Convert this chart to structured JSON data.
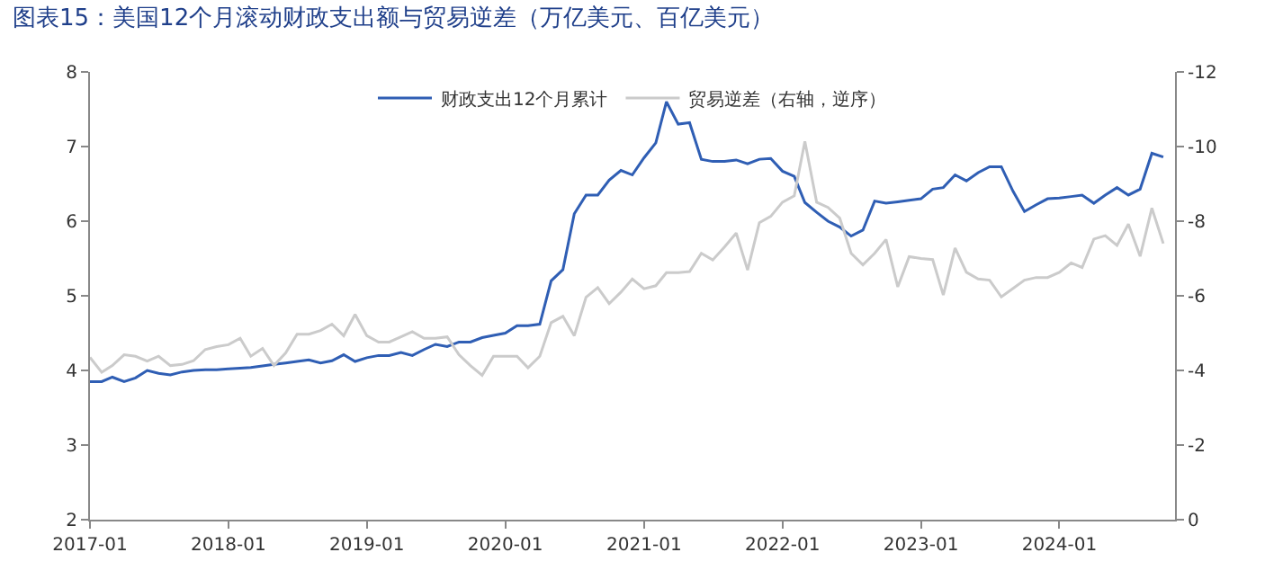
{
  "chart_data": {
    "type": "line",
    "title": "图表15：美国12个月滚动财政支出额与贸易逆差（万亿美元、百亿美元）",
    "x": [
      "2017-01",
      "2017-02",
      "2017-03",
      "2017-04",
      "2017-05",
      "2017-06",
      "2017-07",
      "2017-08",
      "2017-09",
      "2017-10",
      "2017-11",
      "2017-12",
      "2018-01",
      "2018-02",
      "2018-03",
      "2018-04",
      "2018-05",
      "2018-06",
      "2018-07",
      "2018-08",
      "2018-09",
      "2018-10",
      "2018-11",
      "2018-12",
      "2019-01",
      "2019-02",
      "2019-03",
      "2019-04",
      "2019-05",
      "2019-06",
      "2019-07",
      "2019-08",
      "2019-09",
      "2019-10",
      "2019-11",
      "2019-12",
      "2020-01",
      "2020-02",
      "2020-03",
      "2020-04",
      "2020-05",
      "2020-06",
      "2020-07",
      "2020-08",
      "2020-09",
      "2020-10",
      "2020-11",
      "2020-12",
      "2021-01",
      "2021-02",
      "2021-03",
      "2021-04",
      "2021-05",
      "2021-06",
      "2021-07",
      "2021-08",
      "2021-09",
      "2021-10",
      "2021-11",
      "2021-12",
      "2022-01",
      "2022-02",
      "2022-03",
      "2022-04",
      "2022-05",
      "2022-06",
      "2022-07",
      "2022-08",
      "2022-09",
      "2022-10",
      "2022-11",
      "2022-12",
      "2023-01",
      "2023-02",
      "2023-03",
      "2023-04",
      "2023-05",
      "2023-06",
      "2023-07",
      "2023-08",
      "2023-09",
      "2023-10",
      "2023-11",
      "2023-12",
      "2024-01",
      "2024-02",
      "2024-03",
      "2024-04",
      "2024-05",
      "2024-06",
      "2024-07",
      "2024-08",
      "2024-09",
      "2024-10"
    ],
    "series": [
      {
        "name": "财政支出12个月累计",
        "color": "#2f5eb4",
        "values": [
          3.85,
          3.85,
          3.91,
          3.85,
          3.9,
          4.0,
          3.96,
          3.94,
          3.98,
          4.0,
          4.01,
          4.01,
          4.02,
          4.03,
          4.04,
          4.06,
          4.08,
          4.1,
          4.12,
          4.14,
          4.1,
          4.13,
          4.21,
          4.12,
          4.17,
          4.2,
          4.2,
          4.24,
          4.2,
          4.28,
          4.35,
          4.32,
          4.38,
          4.38,
          4.44,
          4.47,
          4.5,
          4.6,
          4.6,
          4.62,
          5.2,
          5.35,
          6.1,
          6.35,
          6.35,
          6.55,
          6.68,
          6.62,
          6.85,
          7.05,
          7.6,
          7.3,
          7.32,
          6.83,
          6.8,
          6.8,
          6.82,
          6.77,
          6.83,
          6.84,
          6.67,
          6.6,
          6.25,
          6.12,
          6.0,
          5.92,
          5.8,
          5.88,
          6.27,
          6.24,
          6.26,
          6.28,
          6.3,
          6.43,
          6.45,
          6.62,
          6.54,
          6.65,
          6.73,
          6.73,
          6.4,
          6.13,
          6.22,
          6.3,
          6.31,
          6.33,
          6.35,
          6.24,
          6.35,
          6.45,
          6.35,
          6.43,
          6.91,
          6.86
        ]
      },
      {
        "name": "贸易逆差（右轴，逆序）",
        "color": "#cbcbcb",
        "axis": "y2",
        "values": [
          -4.35,
          -3.95,
          -4.13,
          -4.42,
          -4.38,
          -4.25,
          -4.38,
          -4.13,
          -4.16,
          -4.26,
          -4.56,
          -4.64,
          -4.69,
          -4.86,
          -4.38,
          -4.59,
          -4.13,
          -4.47,
          -4.97,
          -4.97,
          -5.07,
          -5.24,
          -4.93,
          -5.5,
          -4.93,
          -4.76,
          -4.76,
          -4.9,
          -5.04,
          -4.86,
          -4.86,
          -4.9,
          -4.42,
          -4.13,
          -3.87,
          -4.38,
          -4.38,
          -4.38,
          -4.07,
          -4.38,
          -5.28,
          -5.45,
          -4.93,
          -5.96,
          -6.22,
          -5.79,
          -6.1,
          -6.45,
          -6.19,
          -6.27,
          -6.62,
          -6.62,
          -6.65,
          -7.14,
          -6.96,
          -7.31,
          -7.68,
          -6.69,
          -7.96,
          -8.13,
          -8.51,
          -8.68,
          -10.14,
          -8.51,
          -8.37,
          -8.08,
          -7.14,
          -6.83,
          -7.14,
          -7.51,
          -6.24,
          -7.05,
          -7.0,
          -6.97,
          -6.02,
          -7.28,
          -6.63,
          -6.45,
          -6.42,
          -5.97,
          -6.2,
          -6.42,
          -6.49,
          -6.49,
          -6.63,
          -6.88,
          -6.76,
          -7.52,
          -7.61,
          -7.35,
          -7.92,
          -7.06,
          -8.35,
          -7.4
        ]
      }
    ],
    "xlim": [
      "2017-01",
      "2024-11"
    ],
    "xticks": [
      {
        "value": "2017-01",
        "label": "2017-01"
      },
      {
        "value": "2018-01",
        "label": "2018-01"
      },
      {
        "value": "2019-01",
        "label": "2019-01"
      },
      {
        "value": "2020-01",
        "label": "2020-01"
      },
      {
        "value": "2021-01",
        "label": "2021-01"
      },
      {
        "value": "2022-01",
        "label": "2022-01"
      },
      {
        "value": "2023-01",
        "label": "2023-01"
      },
      {
        "value": "2024-01",
        "label": "2024-01"
      }
    ],
    "ylim": [
      2,
      8
    ],
    "yticks": [
      2,
      3,
      4,
      5,
      6,
      7,
      8
    ],
    "y2lim": [
      0,
      -12
    ],
    "y2ticks": [
      0,
      -2,
      -4,
      -6,
      -8,
      -10,
      -12
    ],
    "grid": false,
    "legend": "top",
    "marker": "none",
    "line_style": "solid"
  }
}
